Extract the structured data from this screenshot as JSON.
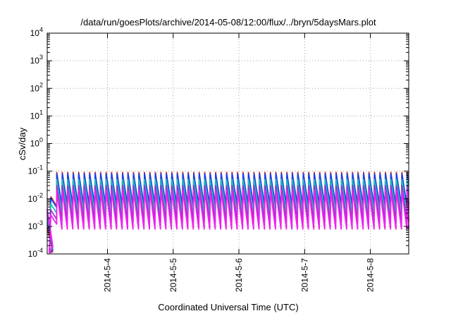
{
  "chart_data": {
    "type": "line",
    "title": "/data/run/goesPlots/archive/2014-05-08/12:00/flux/../bryn/5daysMars.plot",
    "xlabel": "Coordinated Universal Time (UTC)",
    "ylabel": "cSv/day",
    "yscale": "log",
    "ylim": [
      0.0001,
      10000
    ],
    "xlim": [
      "2014-05-03T02:00",
      "2014-05-08T14:00"
    ],
    "grid": true,
    "ytick_labels": [
      {
        "base": "10",
        "exp": "4"
      },
      {
        "base": "10",
        "exp": "3"
      },
      {
        "base": "10",
        "exp": "2"
      },
      {
        "base": "10",
        "exp": "1"
      },
      {
        "base": "10",
        "exp": "0"
      },
      {
        "base": "10",
        "exp": "-1"
      },
      {
        "base": "10",
        "exp": "-2"
      },
      {
        "base": "10",
        "exp": "-3"
      },
      {
        "base": "10",
        "exp": "-4"
      }
    ],
    "xtick_labels": [
      "2014-5-4",
      "2014-5-5",
      "2014-5-6",
      "2014-5-7",
      "2014-5-8"
    ],
    "xtick_dates": [
      "2014-05-04T00:00",
      "2014-05-05T00:00",
      "2014-05-06T00:00",
      "2014-05-07T00:00",
      "2014-05-08T00:00"
    ],
    "pattern": {
      "period_hours": 2,
      "peak_value": 0.07,
      "trough_value": 0.001,
      "onset_date": "2014-05-03T05:30",
      "pre_onset_value": 0.01,
      "step_value": 0.01
    },
    "series": [
      {
        "color": "#dd2222",
        "peak": 0.09,
        "trough": 0.004
      },
      {
        "color": "#1144ee",
        "peak": 0.08,
        "trough": 0.006
      },
      {
        "color": "#22bbbb",
        "peak": 0.05,
        "trough": 0.003
      },
      {
        "color": "#9933cc",
        "peak": 0.03,
        "trough": 0.0015
      },
      {
        "color": "#ee22ee",
        "peak": 0.02,
        "trough": 0.0008
      }
    ]
  }
}
